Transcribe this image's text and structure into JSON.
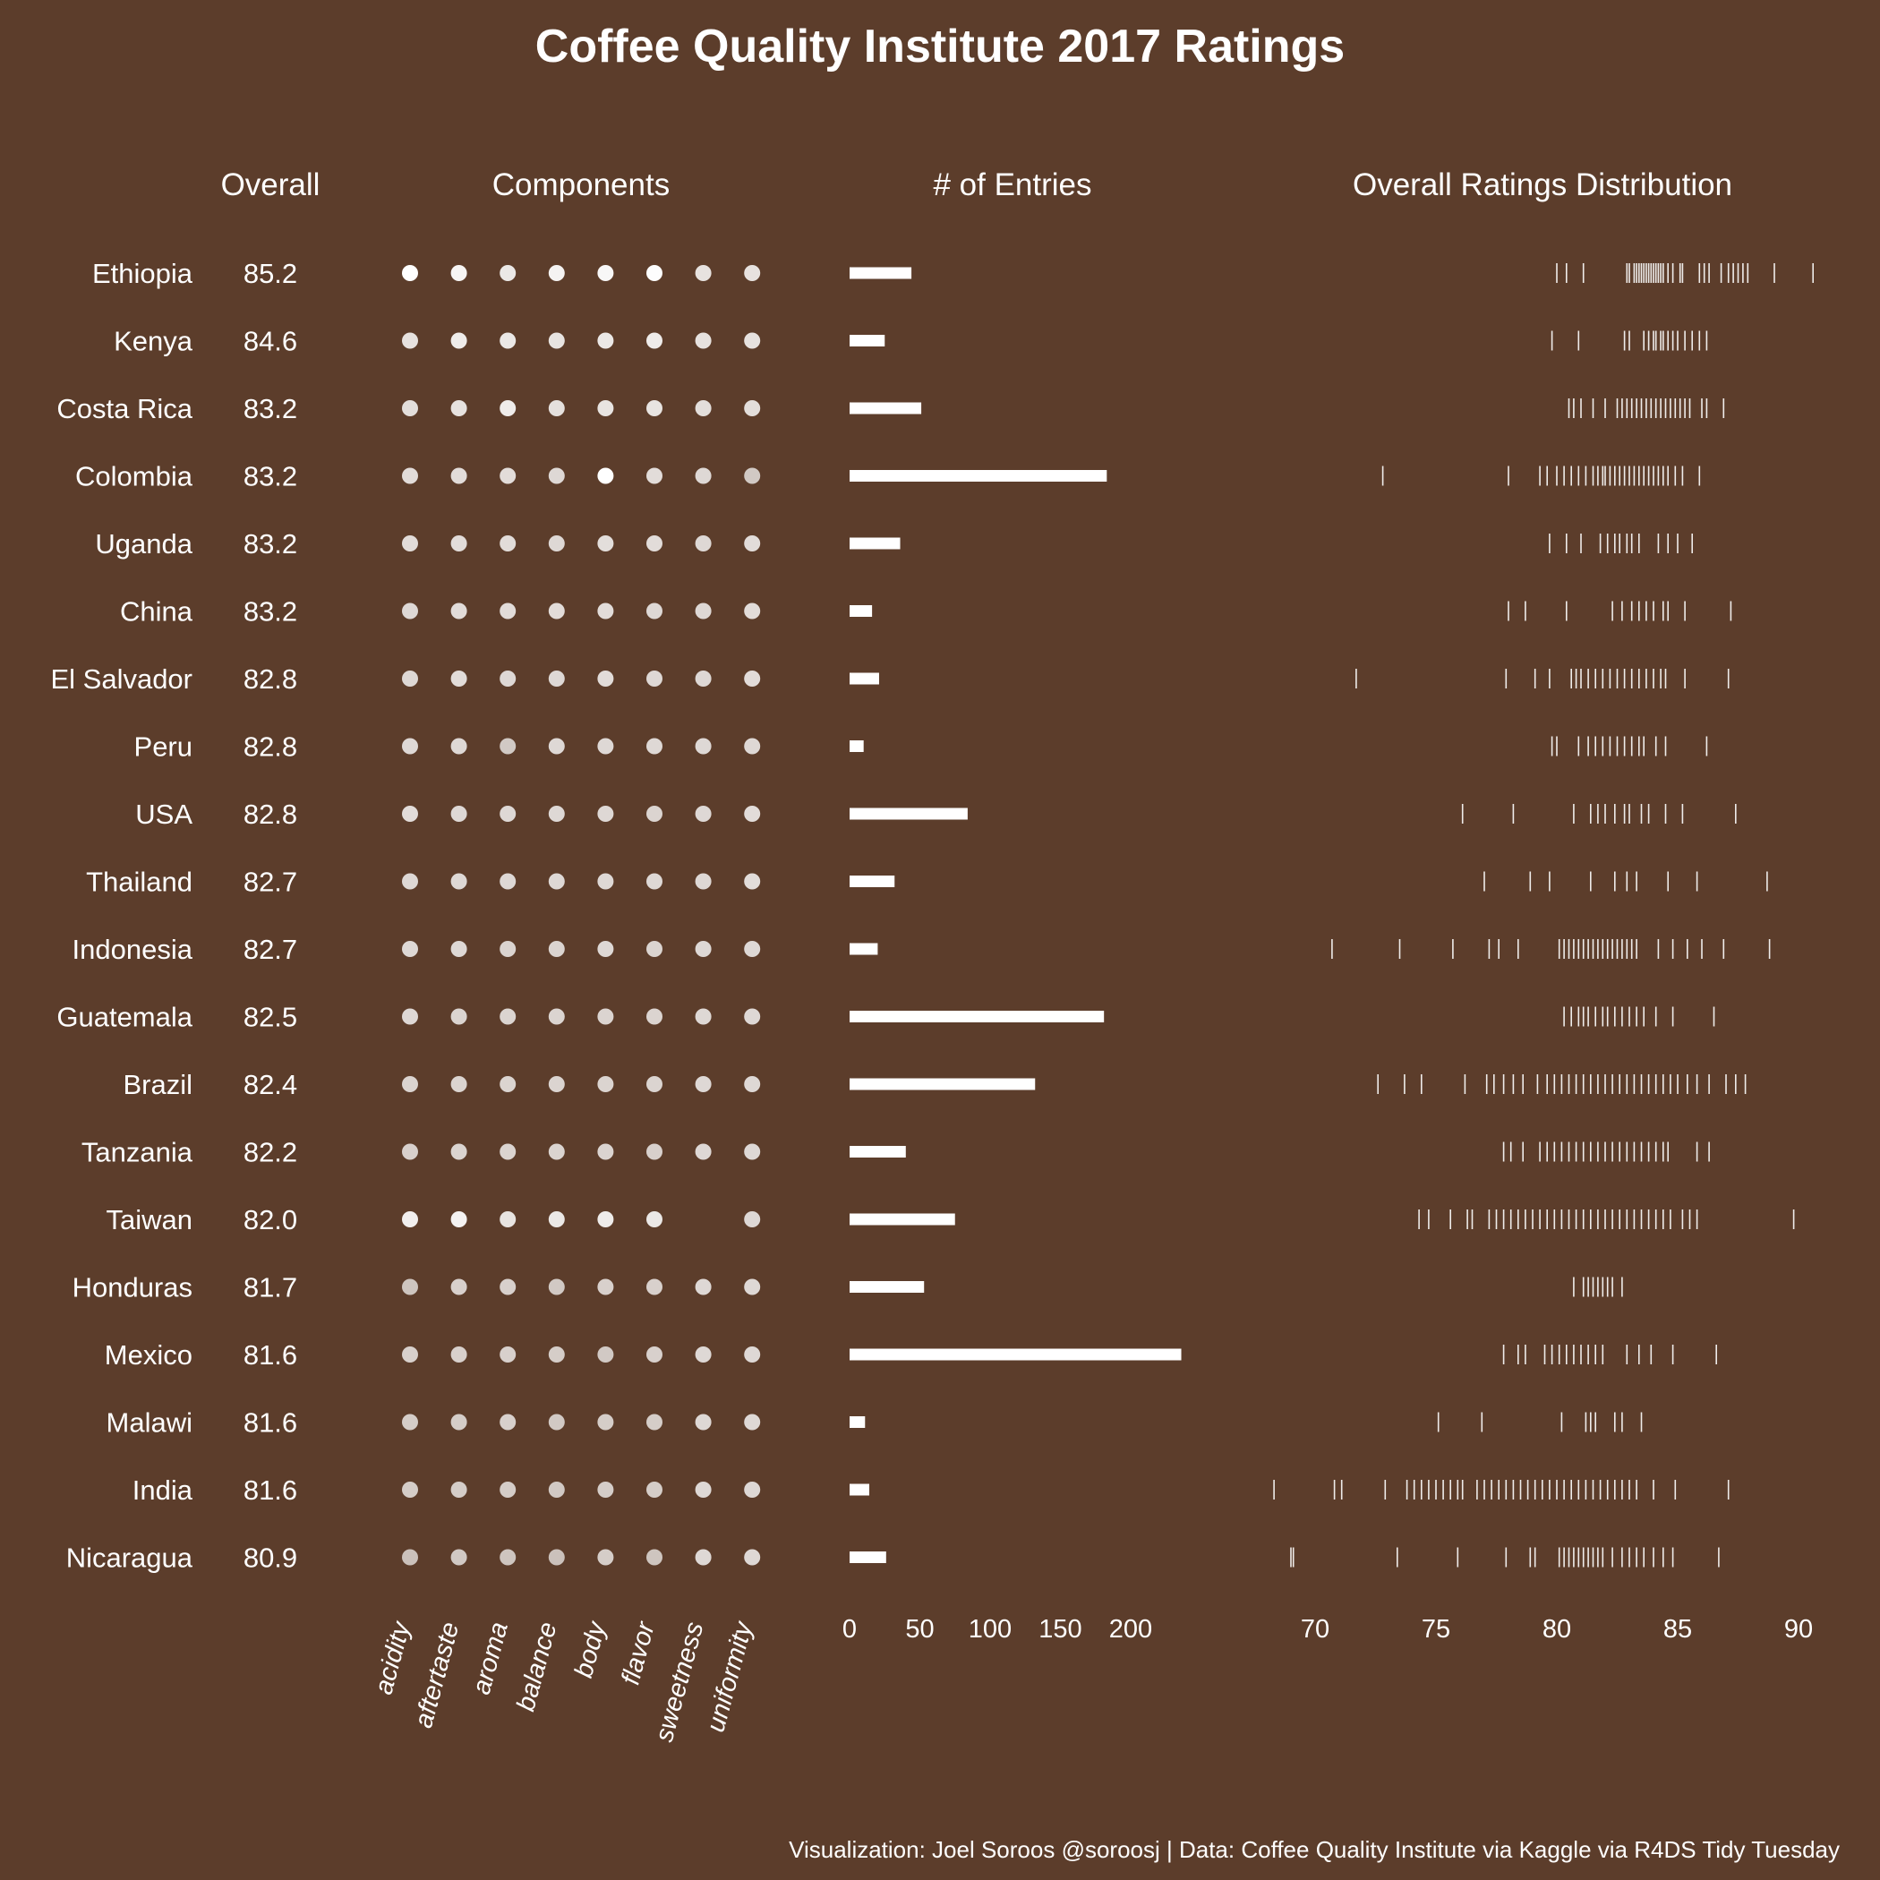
{
  "chart_data": {
    "type": "table",
    "title": "Coffee Quality Institute 2017 Ratings",
    "caption": "Visualization: Joel Soroos @soroosj  |  Data: Coffee Quality Institute via Kaggle via R4DS Tidy Tuesday",
    "column_headers": {
      "overall": "Overall",
      "components": "Components",
      "entries": "# of Entries",
      "distribution": "Overall Ratings Distribution"
    },
    "component_names": [
      "acidity",
      "aftertaste",
      "aroma",
      "balance",
      "body",
      "flavor",
      "sweetness",
      "uniformity"
    ],
    "entries_ticks": [
      "0",
      "50",
      "100",
      "150",
      "200"
    ],
    "entries_range": [
      0,
      240
    ],
    "distribution_ticks": [
      "70",
      "75",
      "80",
      "85",
      "90"
    ],
    "distribution_range": [
      67.2,
      90.8
    ],
    "rows": [
      {
        "country": "Ethiopia",
        "overall": "85.2",
        "entries": 44,
        "components": [
          1.0,
          0.95,
          0.88,
          0.94,
          0.96,
          0.99,
          0.85,
          0.85
        ],
        "ratings": [
          80.0,
          80.4,
          81.1,
          82.9,
          83.0,
          83.2,
          83.3,
          83.4,
          83.5,
          83.6,
          83.7,
          83.8,
          83.9,
          84.0,
          84.1,
          84.2,
          84.3,
          84.4,
          84.6,
          84.8,
          85.1,
          85.2,
          85.9,
          86.1,
          86.3,
          86.8,
          87.1,
          87.3,
          87.5,
          87.7,
          87.9,
          89.0,
          90.6
        ]
      },
      {
        "country": "Kenya",
        "overall": "84.6",
        "entries": 25,
        "components": [
          0.85,
          0.9,
          0.88,
          0.86,
          0.88,
          0.9,
          0.85,
          0.85
        ],
        "ratings": [
          79.8,
          80.9,
          82.8,
          83.0,
          83.6,
          83.8,
          84.0,
          84.1,
          84.3,
          84.4,
          84.6,
          84.8,
          85.0,
          85.3,
          85.6,
          85.9,
          86.2
        ]
      },
      {
        "country": "Costa Rica",
        "overall": "83.2",
        "entries": 51,
        "components": [
          0.83,
          0.85,
          0.9,
          0.84,
          0.86,
          0.86,
          0.83,
          0.83
        ],
        "ratings": [
          80.5,
          80.7,
          81.0,
          81.5,
          82.0,
          82.5,
          82.7,
          82.9,
          83.1,
          83.3,
          83.5,
          83.7,
          83.9,
          84.1,
          84.3,
          84.5,
          84.7,
          84.9,
          85.1,
          85.3,
          85.5,
          86.0,
          86.2,
          86.9
        ]
      },
      {
        "country": "Colombia",
        "overall": "83.2",
        "entries": 183,
        "components": [
          0.82,
          0.82,
          0.82,
          0.8,
          1.0,
          0.82,
          0.8,
          0.72
        ],
        "ratings": [
          72.8,
          78.0,
          79.3,
          79.6,
          80.0,
          80.3,
          80.6,
          80.9,
          81.2,
          81.5,
          81.7,
          81.9,
          82.0,
          82.2,
          82.4,
          82.6,
          82.8,
          83.0,
          83.2,
          83.4,
          83.6,
          83.8,
          84.0,
          84.2,
          84.4,
          84.6,
          84.9,
          85.2,
          85.9
        ]
      },
      {
        "country": "Uganda",
        "overall": "83.2",
        "entries": 36,
        "components": [
          0.82,
          0.82,
          0.82,
          0.8,
          0.83,
          0.82,
          0.8,
          0.82
        ],
        "ratings": [
          79.7,
          80.4,
          81.0,
          81.8,
          82.1,
          82.4,
          82.6,
          82.9,
          83.1,
          83.4,
          84.2,
          84.6,
          85.0,
          85.6
        ]
      },
      {
        "country": "China",
        "overall": "83.2",
        "entries": 16,
        "components": [
          0.8,
          0.82,
          0.82,
          0.82,
          0.82,
          0.8,
          0.8,
          0.82
        ],
        "ratings": [
          78.0,
          78.7,
          80.4,
          82.3,
          82.7,
          83.1,
          83.4,
          83.7,
          84.0,
          84.4,
          84.6,
          85.3,
          87.2
        ]
      },
      {
        "country": "El Salvador",
        "overall": "82.8",
        "entries": 21,
        "components": [
          0.8,
          0.82,
          0.8,
          0.8,
          0.82,
          0.8,
          0.8,
          0.82
        ],
        "ratings": [
          71.7,
          77.9,
          79.1,
          79.7,
          80.6,
          80.8,
          81.0,
          81.3,
          81.6,
          81.9,
          82.2,
          82.5,
          82.8,
          83.1,
          83.4,
          83.7,
          84.0,
          84.3,
          84.5,
          85.3,
          87.1
        ]
      },
      {
        "country": "Peru",
        "overall": "82.8",
        "entries": 10,
        "components": [
          0.8,
          0.8,
          0.72,
          0.8,
          0.8,
          0.8,
          0.8,
          0.8
        ],
        "ratings": [
          79.8,
          80.0,
          80.9,
          81.3,
          81.6,
          81.9,
          82.2,
          82.5,
          82.8,
          83.1,
          83.4,
          83.6,
          84.1,
          84.5,
          86.2
        ]
      },
      {
        "country": "USA",
        "overall": "82.8",
        "entries": 84,
        "components": [
          0.82,
          0.8,
          0.8,
          0.8,
          0.8,
          0.78,
          0.8,
          0.82
        ],
        "ratings": [
          76.1,
          78.2,
          80.7,
          81.4,
          81.7,
          82.0,
          82.4,
          82.8,
          83.0,
          83.5,
          83.8,
          84.5,
          85.2,
          87.4
        ]
      },
      {
        "country": "Thailand",
        "overall": "82.7",
        "entries": 32,
        "components": [
          0.8,
          0.8,
          0.8,
          0.8,
          0.8,
          0.8,
          0.8,
          0.82
        ],
        "ratings": [
          77.0,
          78.9,
          79.7,
          81.4,
          82.4,
          82.9,
          83.3,
          84.6,
          85.8,
          88.7
        ]
      },
      {
        "country": "Indonesia",
        "overall": "82.7",
        "entries": 20,
        "components": [
          0.8,
          0.8,
          0.78,
          0.78,
          0.8,
          0.78,
          0.8,
          0.8
        ],
        "ratings": [
          70.7,
          73.5,
          75.7,
          77.2,
          77.6,
          78.4,
          80.1,
          80.3,
          80.5,
          80.7,
          80.9,
          81.1,
          81.3,
          81.5,
          81.7,
          81.9,
          82.1,
          82.3,
          82.5,
          82.7,
          82.9,
          83.1,
          83.3,
          84.2,
          84.8,
          85.4,
          86.0,
          86.9,
          88.8
        ]
      },
      {
        "country": "Guatemala",
        "overall": "82.5",
        "entries": 181,
        "components": [
          0.8,
          0.78,
          0.78,
          0.78,
          0.78,
          0.78,
          0.8,
          0.8
        ],
        "ratings": [
          80.3,
          80.6,
          80.9,
          81.1,
          81.3,
          81.6,
          81.9,
          82.1,
          82.4,
          82.7,
          83.0,
          83.3,
          83.6,
          84.1,
          84.8,
          86.5
        ]
      },
      {
        "country": "Brazil",
        "overall": "82.4",
        "entries": 132,
        "components": [
          0.78,
          0.78,
          0.78,
          0.78,
          0.78,
          0.78,
          0.8,
          0.8
        ],
        "ratings": [
          72.6,
          73.7,
          74.4,
          76.2,
          77.1,
          77.4,
          77.8,
          78.2,
          78.6,
          79.2,
          79.6,
          79.9,
          80.2,
          80.5,
          80.8,
          81.1,
          81.4,
          81.7,
          82.0,
          82.3,
          82.6,
          82.9,
          83.2,
          83.5,
          83.8,
          84.1,
          84.4,
          84.7,
          85.0,
          85.4,
          85.8,
          86.3,
          87.0,
          87.4,
          87.8
        ]
      },
      {
        "country": "Tanzania",
        "overall": "82.2",
        "entries": 40,
        "components": [
          0.76,
          0.78,
          0.78,
          0.78,
          0.78,
          0.76,
          0.8,
          0.8
        ],
        "ratings": [
          77.8,
          78.1,
          78.6,
          79.3,
          79.6,
          79.9,
          80.2,
          80.5,
          80.8,
          81.1,
          81.4,
          81.7,
          82.0,
          82.3,
          82.6,
          82.9,
          83.2,
          83.5,
          83.8,
          84.1,
          84.4,
          84.6,
          85.8,
          86.3
        ]
      },
      {
        "country": "Taiwan",
        "overall": "82.0",
        "entries": 75,
        "components": [
          0.92,
          0.94,
          0.86,
          0.88,
          0.9,
          0.88,
          null,
          0.8
        ],
        "ratings": [
          74.3,
          74.7,
          75.6,
          76.3,
          76.5,
          77.2,
          77.5,
          77.8,
          78.1,
          78.4,
          78.7,
          79.0,
          79.3,
          79.6,
          79.9,
          80.2,
          80.5,
          80.8,
          81.1,
          81.4,
          81.7,
          82.0,
          82.3,
          82.6,
          82.9,
          83.2,
          83.5,
          83.8,
          84.1,
          84.4,
          84.7,
          85.2,
          85.5,
          85.8,
          89.8
        ]
      },
      {
        "country": "Honduras",
        "overall": "81.7",
        "entries": 53,
        "components": [
          0.7,
          0.76,
          0.76,
          0.72,
          0.76,
          0.76,
          0.8,
          0.8
        ],
        "ratings": [
          80.7,
          81.1,
          81.3,
          81.5,
          81.7,
          81.9,
          82.1,
          82.3,
          82.7
        ]
      },
      {
        "country": "Mexico",
        "overall": "81.6",
        "entries": 236,
        "components": [
          0.76,
          0.76,
          0.76,
          0.74,
          0.72,
          0.76,
          0.8,
          0.8
        ],
        "ratings": [
          77.8,
          78.4,
          78.7,
          79.5,
          79.8,
          80.1,
          80.4,
          80.7,
          81.0,
          81.3,
          81.6,
          81.9,
          82.9,
          83.4,
          83.9,
          84.8,
          86.6
        ]
      },
      {
        "country": "Malawi",
        "overall": "81.6",
        "entries": 11,
        "components": [
          0.74,
          0.74,
          0.76,
          0.72,
          0.74,
          0.74,
          0.8,
          0.8
        ],
        "ratings": [
          75.1,
          76.9,
          80.2,
          81.2,
          81.4,
          81.6,
          82.4,
          82.7,
          83.5
        ]
      },
      {
        "country": "India",
        "overall": "81.6",
        "entries": 14,
        "components": [
          0.74,
          0.74,
          0.74,
          0.72,
          0.74,
          0.74,
          0.8,
          0.8
        ],
        "ratings": [
          68.3,
          70.8,
          71.1,
          72.9,
          73.8,
          74.1,
          74.4,
          74.7,
          75.0,
          75.3,
          75.6,
          75.9,
          76.1,
          76.7,
          77.0,
          77.3,
          77.6,
          77.9,
          78.2,
          78.5,
          78.8,
          79.1,
          79.4,
          79.7,
          80.0,
          80.3,
          80.6,
          80.9,
          81.2,
          81.5,
          81.8,
          82.1,
          82.4,
          82.7,
          83.0,
          83.3,
          84.0,
          84.9,
          87.1
        ]
      },
      {
        "country": "Nicaragua",
        "overall": "80.9",
        "entries": 26,
        "components": [
          0.68,
          0.72,
          0.7,
          0.68,
          0.74,
          0.7,
          0.8,
          0.8
        ],
        "ratings": [
          69.0,
          69.1,
          73.4,
          75.9,
          77.9,
          78.9,
          79.1,
          80.1,
          80.3,
          80.5,
          80.7,
          80.9,
          81.1,
          81.3,
          81.5,
          81.7,
          81.9,
          82.3,
          82.7,
          83.0,
          83.3,
          83.6,
          84.0,
          84.4,
          84.8,
          86.7
        ]
      }
    ]
  }
}
